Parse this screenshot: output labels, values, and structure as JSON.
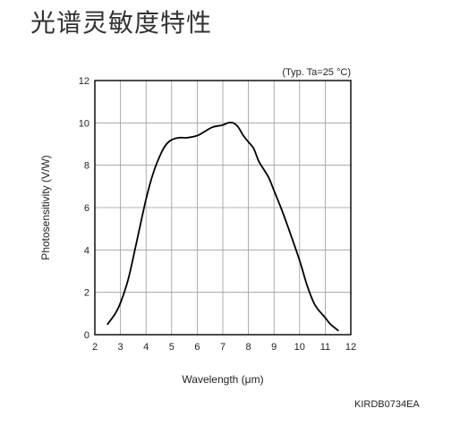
{
  "page": {
    "title": "光谱灵敏度特性",
    "document_code": "KIRDB0734EA"
  },
  "chart_data": {
    "type": "line",
    "title": "",
    "condition_note": "(Typ. Ta=25 °C)",
    "xlabel": "Wavelength (μm)",
    "ylabel": "Photosensitivity (V/W)",
    "xlim": [
      2,
      12
    ],
    "ylim": [
      0,
      12
    ],
    "xticks": [
      2,
      3,
      4,
      5,
      6,
      7,
      8,
      9,
      10,
      11,
      12
    ],
    "yticks": [
      0,
      2,
      4,
      6,
      8,
      10,
      12
    ],
    "grid": true,
    "colors": {
      "line": "#000000",
      "grid": "#9a9a9a",
      "frame": "#000000"
    },
    "series": [
      {
        "x": [
          2.5,
          2.8,
          3.0,
          3.3,
          3.6,
          4.0,
          4.3,
          4.6,
          4.8,
          5.0,
          5.3,
          5.6,
          6.0,
          6.3,
          6.6,
          7.0,
          7.2,
          7.4,
          7.6,
          7.8,
          8.0,
          8.2,
          8.4,
          8.6,
          8.8,
          9.0,
          9.3,
          9.6,
          10.0,
          10.3,
          10.6,
          11.0,
          11.2,
          11.5
        ],
        "y": [
          0.5,
          1.0,
          1.5,
          2.6,
          4.2,
          6.4,
          7.7,
          8.6,
          9.0,
          9.2,
          9.3,
          9.3,
          9.4,
          9.6,
          9.8,
          9.9,
          10.0,
          10.0,
          9.8,
          9.4,
          9.1,
          8.8,
          8.2,
          7.8,
          7.4,
          6.8,
          5.9,
          4.9,
          3.5,
          2.3,
          1.4,
          0.8,
          0.5,
          0.2
        ]
      }
    ]
  }
}
